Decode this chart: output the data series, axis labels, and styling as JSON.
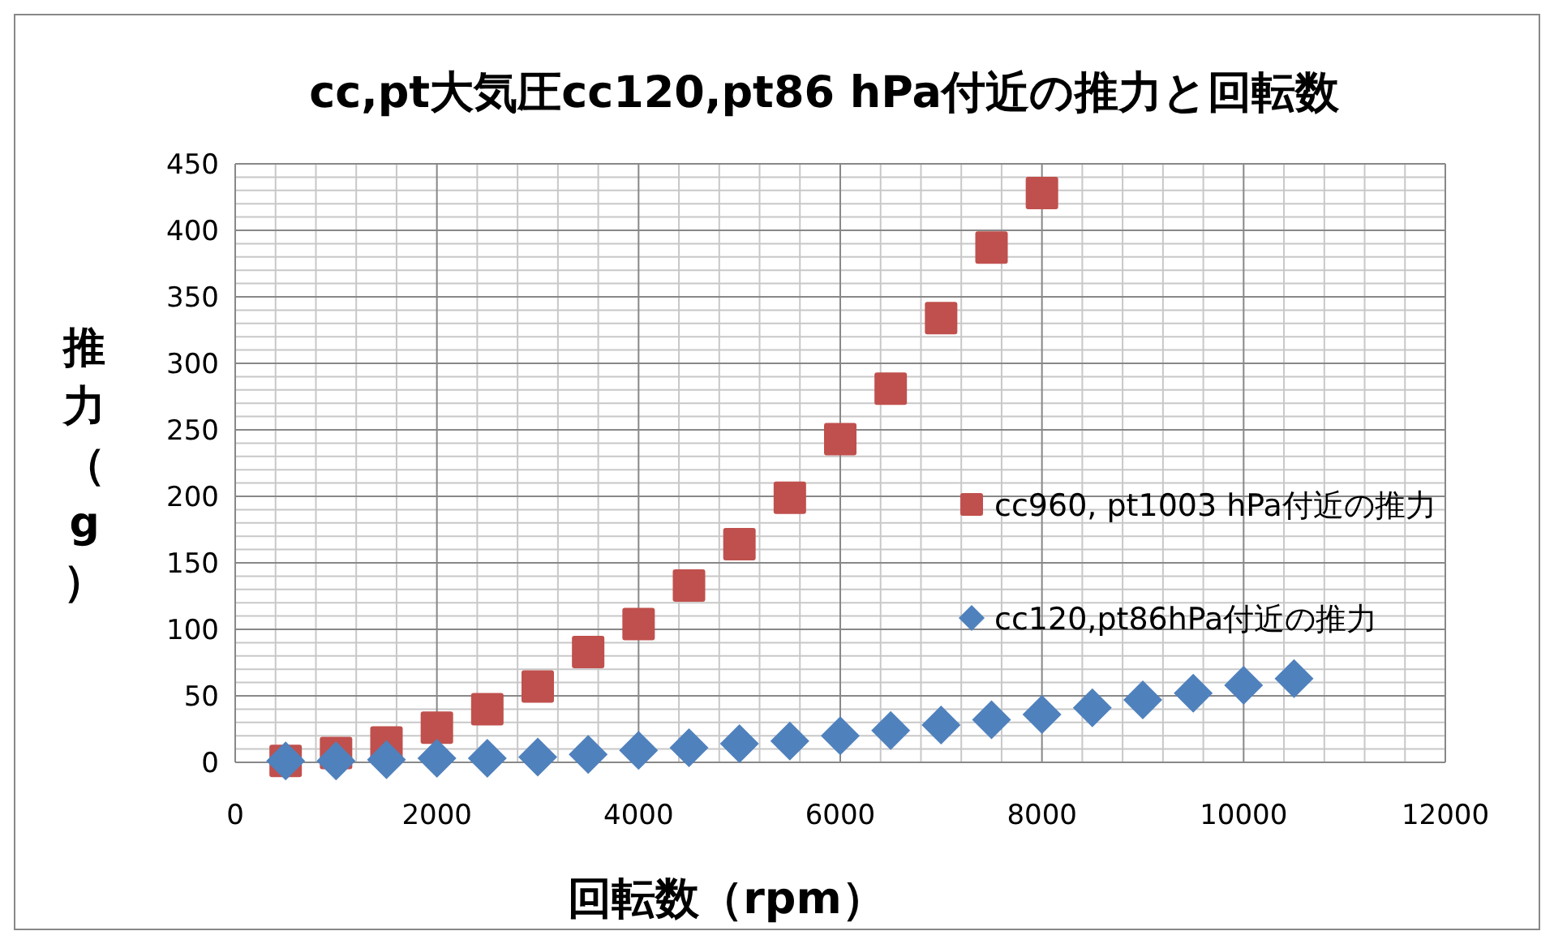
{
  "chart_data": {
    "type": "scatter",
    "title": "cc,pt大気圧cc120,pt86 hPa付近の推力と回転数",
    "xlabel": "回転数（rpm）",
    "ylabel": "推力（g）",
    "xlim": [
      0,
      12000
    ],
    "xticks": [
      0,
      2000,
      4000,
      6000,
      8000,
      10000,
      12000
    ],
    "ylim": [
      0,
      450
    ],
    "yticks": [
      0,
      50,
      100,
      150,
      200,
      250,
      300,
      350,
      400,
      450
    ],
    "grid": true,
    "legend": "right",
    "series": [
      {
        "name": "cc960, pt1003 hPa付近の推力",
        "color": "#c0504d",
        "marker": "square",
        "x": [
          500,
          1000,
          1500,
          2000,
          2500,
          3000,
          3500,
          4000,
          4500,
          5000,
          5500,
          6000,
          6500,
          7000,
          7500,
          8000
        ],
        "values": [
          1,
          7,
          15,
          26,
          40,
          57,
          83,
          104,
          133,
          164,
          199,
          243,
          281,
          334,
          387,
          428
        ]
      },
      {
        "name": "cc120,pt86hPa付近の推力",
        "color": "#4f81bd",
        "marker": "diamond",
        "x": [
          500,
          1000,
          1500,
          2000,
          2500,
          3000,
          3500,
          4000,
          4500,
          5000,
          5500,
          6000,
          6500,
          7000,
          7500,
          8000,
          8500,
          9000,
          9500,
          10000,
          10500
        ],
        "values": [
          1,
          1,
          2,
          3,
          3,
          4,
          6,
          9,
          11,
          14,
          16,
          20,
          24,
          28,
          32,
          36,
          41,
          47,
          52,
          58,
          63
        ]
      }
    ]
  }
}
